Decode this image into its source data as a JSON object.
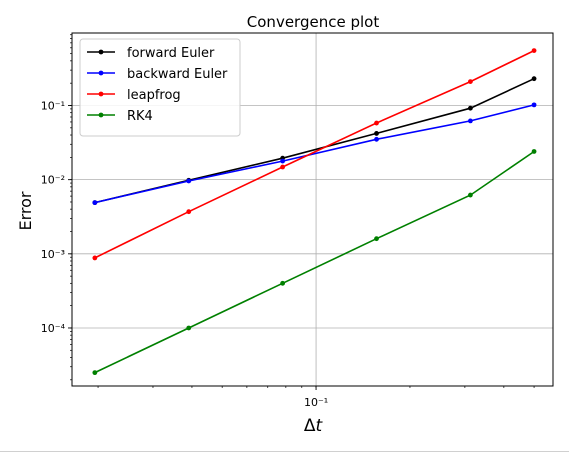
{
  "chart_data": {
    "type": "line",
    "title": "Convergence plot",
    "xlabel": "Δt",
    "ylabel": "Error",
    "xscale": "log",
    "yscale": "log",
    "xlim": [
      0.0165,
      0.575
    ],
    "ylim": [
      1.65e-05,
      0.95
    ],
    "grid": true,
    "legend_position": "top-left",
    "x_ticks": [
      {
        "value": 0.1,
        "label": "10⁻¹"
      }
    ],
    "y_ticks": [
      {
        "value": 0.1,
        "label": "10⁻¹"
      },
      {
        "value": 0.01,
        "label": "10⁻²"
      },
      {
        "value": 0.001,
        "label": "10⁻³"
      },
      {
        "value": 0.0001,
        "label": "10⁻⁴"
      }
    ],
    "x": [
      0.01953125,
      0.0390625,
      0.078125,
      0.15625,
      0.3125,
      0.5
    ],
    "series": [
      {
        "name": "forward Euler",
        "color": "#000000",
        "values": [
          0.0049,
          0.0098,
          0.0195,
          0.042,
          0.092,
          0.23
        ]
      },
      {
        "name": "backward Euler",
        "color": "#0000ff",
        "values": [
          0.0049,
          0.0096,
          0.0178,
          0.035,
          0.062,
          0.102
        ]
      },
      {
        "name": "leapfrog",
        "color": "#ff0000",
        "values": [
          0.00088,
          0.0037,
          0.0148,
          0.058,
          0.21,
          0.55
        ]
      },
      {
        "name": "RK4",
        "color": "#008000",
        "values": [
          2.5e-05,
          0.0001,
          0.0004,
          0.0016,
          0.0062,
          0.024
        ]
      }
    ]
  }
}
